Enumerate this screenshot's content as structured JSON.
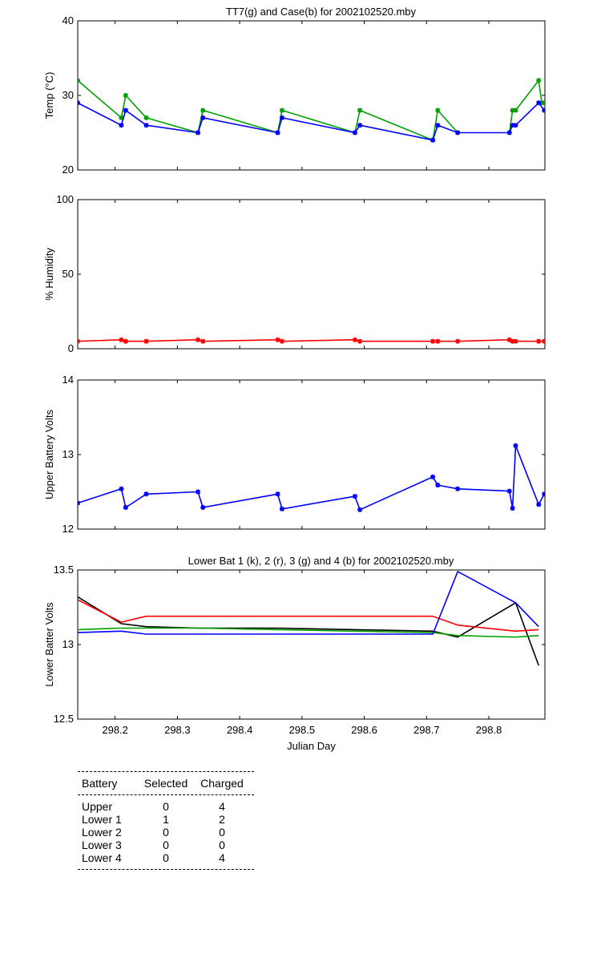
{
  "colors": {
    "green": "#00a000",
    "blue": "#0000ff",
    "red": "#ff0000",
    "black": "#000000"
  },
  "chart_data": [
    {
      "type": "line",
      "title": "TT7(g) and Case(b) for 2002102520.mby",
      "xlabel": "",
      "ylabel": "Temp  (°C)",
      "xlim": [
        298.14,
        298.89
      ],
      "ylim": [
        20,
        40
      ],
      "yticks": [
        "20",
        "30",
        "40"
      ],
      "grid": false,
      "series": [
        {
          "color": "#00a000",
          "marker": "*",
          "x": [
            298.14,
            298.21,
            298.217,
            298.25,
            298.333,
            298.341,
            298.461,
            298.468,
            298.585,
            298.593,
            298.71,
            298.718,
            298.75
          ],
          "y": [
            32,
            27,
            30,
            27,
            25,
            28,
            25,
            28,
            25,
            28,
            24,
            28,
            25
          ]
        },
        {
          "color": "#00a000",
          "marker": "*",
          "x": [
            298.833,
            298.838,
            298.843,
            298.88,
            298.885,
            298.889
          ],
          "y": [
            25,
            28,
            28,
            32,
            29,
            29
          ]
        },
        {
          "color": "#0000ff",
          "marker": "*",
          "x": [
            298.14,
            298.21,
            298.217,
            298.25,
            298.333,
            298.341,
            298.461,
            298.468,
            298.585,
            298.593,
            298.71,
            298.718,
            298.75,
            298.833,
            298.838,
            298.843,
            298.88,
            298.889
          ],
          "y": [
            29,
            26,
            28,
            26,
            25,
            27,
            25,
            27,
            25,
            26,
            24,
            26,
            25,
            25,
            26,
            26,
            29,
            28
          ]
        }
      ]
    },
    {
      "type": "line",
      "title": "",
      "xlabel": "",
      "ylabel": "% Humidity",
      "xlim": [
        298.14,
        298.89
      ],
      "ylim": [
        0,
        100
      ],
      "yticks": [
        "0",
        "50",
        "100"
      ],
      "grid": false,
      "series": [
        {
          "color": "#ff0000",
          "marker": "*",
          "x": [
            298.14,
            298.21,
            298.217,
            298.25,
            298.333,
            298.341,
            298.461,
            298.468,
            298.585,
            298.593,
            298.71,
            298.718,
            298.75,
            298.833,
            298.838,
            298.843,
            298.88,
            298.889
          ],
          "y": [
            5,
            6,
            5,
            5,
            6,
            5,
            6,
            5,
            6,
            5,
            5,
            5,
            5,
            6,
            5,
            5,
            5,
            5
          ]
        }
      ]
    },
    {
      "type": "line",
      "title": "",
      "xlabel": "",
      "ylabel": "Upper Battery Volts",
      "xlim": [
        298.14,
        298.89
      ],
      "ylim": [
        12,
        14
      ],
      "yticks": [
        "12",
        "13",
        "14"
      ],
      "grid": false,
      "series": [
        {
          "color": "#0000ff",
          "marker": "*",
          "x": [
            298.14,
            298.21,
            298.217,
            298.25,
            298.333,
            298.341,
            298.461,
            298.468,
            298.585,
            298.593,
            298.71,
            298.718,
            298.75,
            298.833,
            298.838,
            298.843,
            298.88,
            298.889
          ],
          "y": [
            12.35,
            12.54,
            12.29,
            12.47,
            12.5,
            12.29,
            12.47,
            12.27,
            12.44,
            12.26,
            12.7,
            12.59,
            12.54,
            12.51,
            12.28,
            13.12,
            12.33,
            12.47
          ]
        }
      ]
    },
    {
      "type": "line",
      "title": "Lower Bat 1 (k), 2 (r), 3 (g) and 4 (b) for 2002102520.mby",
      "xlabel": "Julian Day",
      "ylabel": "Lower Batter Volts",
      "xlim": [
        298.14,
        298.89
      ],
      "ylim": [
        12.5,
        13.5
      ],
      "yticks": [
        "12.5",
        "13",
        "13.5"
      ],
      "xticks": [
        "298.2",
        "298.3",
        "298.4",
        "298.5",
        "298.6",
        "298.7",
        "298.8"
      ],
      "grid": false,
      "series": [
        {
          "color": "#000000",
          "x": [
            298.14,
            298.21,
            298.25,
            298.333,
            298.461,
            298.585,
            298.71,
            298.75,
            298.843,
            298.88
          ],
          "y": [
            13.32,
            13.14,
            13.12,
            13.11,
            13.11,
            13.1,
            13.09,
            13.05,
            13.28,
            12.86
          ]
        },
        {
          "color": "#ff0000",
          "x": [
            298.14,
            298.21,
            298.25,
            298.333,
            298.461,
            298.585,
            298.71,
            298.75,
            298.843,
            298.88
          ],
          "y": [
            13.3,
            13.15,
            13.19,
            13.19,
            13.19,
            13.19,
            13.19,
            13.13,
            13.09,
            13.1
          ]
        },
        {
          "color": "#00a000",
          "x": [
            298.14,
            298.21,
            298.25,
            298.333,
            298.461,
            298.585,
            298.71,
            298.75,
            298.843,
            298.88
          ],
          "y": [
            13.1,
            13.11,
            13.11,
            13.11,
            13.1,
            13.09,
            13.08,
            13.06,
            13.05,
            13.06
          ]
        },
        {
          "color": "#0000ff",
          "x": [
            298.14,
            298.21,
            298.25,
            298.333,
            298.461,
            298.585,
            298.71,
            298.75,
            298.843,
            298.88
          ],
          "y": [
            13.08,
            13.09,
            13.07,
            13.07,
            13.07,
            13.07,
            13.07,
            13.49,
            13.28,
            13.12
          ]
        }
      ]
    }
  ],
  "battery_table": {
    "headers": {
      "battery": "Battery",
      "selected": "Selected",
      "charged": "Charged"
    },
    "rows": [
      {
        "battery": "Upper",
        "selected": "0",
        "charged": "4"
      },
      {
        "battery": "Lower 1",
        "selected": "1",
        "charged": "2"
      },
      {
        "battery": "Lower 2",
        "selected": "0",
        "charged": "0"
      },
      {
        "battery": "Lower 3",
        "selected": "0",
        "charged": "0"
      },
      {
        "battery": "Lower 4",
        "selected": "0",
        "charged": "4"
      }
    ]
  }
}
